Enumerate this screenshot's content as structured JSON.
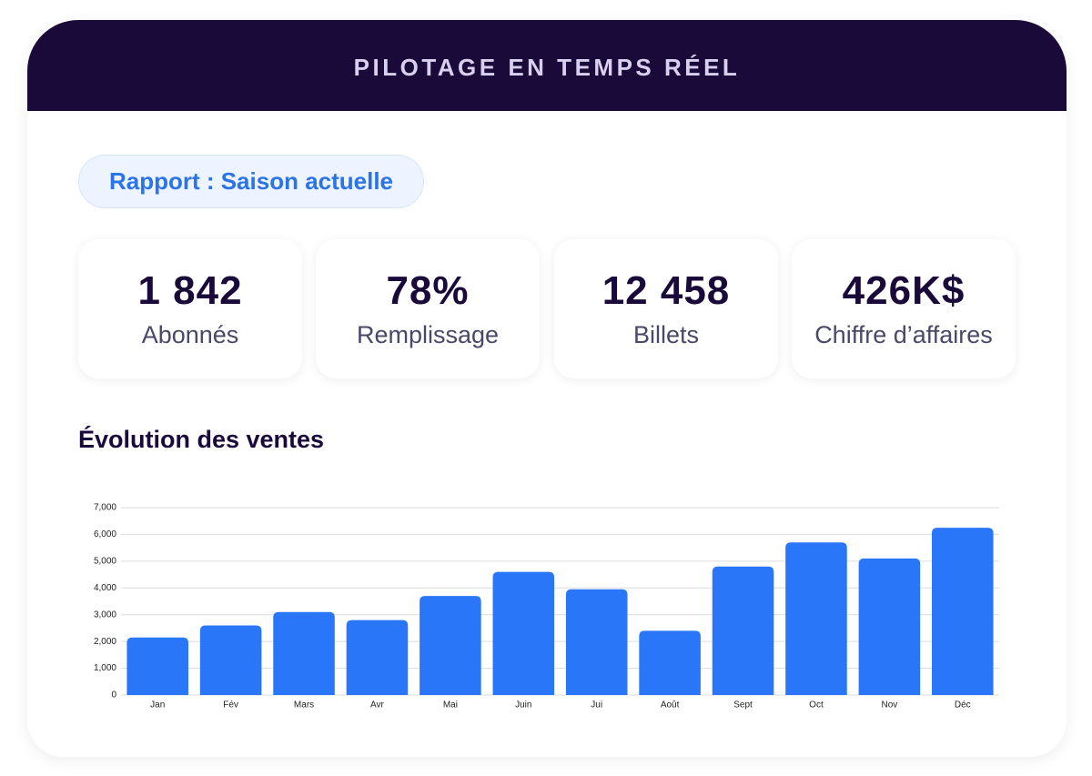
{
  "header": {
    "title": "PILOTAGE EN TEMPS RÉEL"
  },
  "badge": "Rapport : Saison actuelle",
  "kpis": [
    {
      "value": "1 842",
      "label": "Abonnés"
    },
    {
      "value": "78%",
      "label": "Remplissage"
    },
    {
      "value": "12 458",
      "label": "Billets"
    },
    {
      "value": "426K$",
      "label": "Chiffre d’affaires"
    }
  ],
  "section_title": "Évolution des ventes",
  "chart_data": {
    "type": "bar",
    "categories": [
      "Jan",
      "Fév",
      "Mars",
      "Avr",
      "Mai",
      "Juin",
      "Jui",
      "Août",
      "Sept",
      "Oct",
      "Nov",
      "Déc"
    ],
    "values": [
      2150,
      2600,
      3100,
      2800,
      3700,
      4600,
      3950,
      2400,
      4800,
      5700,
      5100,
      6250
    ],
    "color": "#2a76f8",
    "ylim": [
      0,
      7000
    ],
    "yticks": [
      0,
      {
        "value": 1000,
        "label": "1,000"
      },
      {
        "value": 2000,
        "label": "2,000"
      },
      {
        "value": 3000,
        "label": "3,000"
      },
      {
        "value": 4000,
        "label": "4,000"
      },
      {
        "value": 5000,
        "label": "5,000"
      },
      {
        "value": 6000,
        "label": "6,000"
      },
      {
        "value": 7000,
        "label": "7,000"
      }
    ],
    "grid": true
  }
}
